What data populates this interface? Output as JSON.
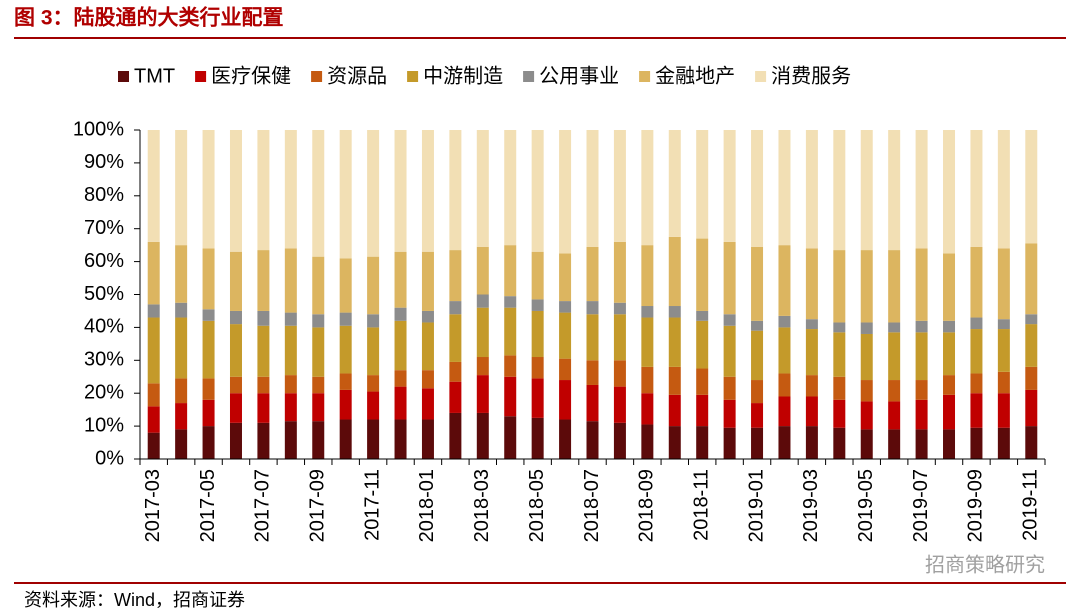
{
  "chart_data": {
    "type": "stacked_bar",
    "title": "图 3：陆股通的大类行业配置",
    "source": "资料来源：Wind，招商证券",
    "watermark": "招商策略研究",
    "categories": [
      "2017-03",
      null,
      "2017-05",
      null,
      "2017-07",
      null,
      "2017-09",
      null,
      "2017-11",
      null,
      "2018-01",
      null,
      "2018-03",
      null,
      "2018-05",
      null,
      "2018-07",
      null,
      "2018-09",
      null,
      "2018-11",
      null,
      "2019-01",
      null,
      "2019-03",
      null,
      "2019-05",
      null,
      "2019-07",
      null,
      "2019-09",
      null,
      "2019-11"
    ],
    "series": [
      {
        "name": "TMT",
        "color": "#5c0a0a",
        "values": [
          8,
          9,
          10,
          11,
          11,
          11.5,
          11.5,
          12,
          12,
          12,
          12,
          14,
          14,
          13,
          12.5,
          12,
          11.5,
          11,
          10.5,
          10,
          10,
          9.5,
          9.5,
          10,
          10,
          9.5,
          9,
          9,
          9,
          9,
          9.5,
          9.5,
          10
        ]
      },
      {
        "name": "医疗保健",
        "color": "#c00000",
        "values": [
          8,
          8,
          8,
          9,
          9,
          8.5,
          8.5,
          9,
          8.5,
          10,
          9.5,
          9.5,
          11.5,
          12,
          12,
          12,
          11,
          11,
          9.5,
          9.5,
          9.5,
          8.5,
          7.5,
          9,
          9,
          8.5,
          8.5,
          8.5,
          9,
          10.5,
          10.5,
          10.5,
          11
        ]
      },
      {
        "name": "资源品",
        "color": "#c55a11",
        "values": [
          7,
          7.5,
          6.5,
          5,
          5,
          5.5,
          5,
          5,
          5,
          5,
          5.5,
          6,
          5.5,
          6.5,
          6.5,
          6.5,
          7.5,
          8,
          8,
          8.5,
          8,
          7,
          7,
          7,
          6.5,
          7,
          6.5,
          6.5,
          6,
          6,
          6,
          6.5,
          7
        ]
      },
      {
        "name": "中游制造",
        "color": "#c49a2a",
        "values": [
          20,
          18.5,
          17.5,
          16,
          15.5,
          15,
          15,
          14.5,
          14.5,
          15,
          14.5,
          14.5,
          15,
          14.5,
          14,
          14,
          14,
          14,
          15,
          15,
          14.5,
          15.5,
          15,
          14,
          14,
          13.5,
          14,
          14.5,
          14.5,
          13,
          13.5,
          13,
          13
        ]
      },
      {
        "name": "公用事业",
        "color": "#8c8c8c",
        "values": [
          4,
          4.5,
          3.5,
          4,
          4.5,
          4,
          4,
          4,
          4,
          4,
          3.5,
          4,
          4,
          3.5,
          3.5,
          3.5,
          4,
          3.5,
          3.5,
          3.5,
          3,
          3.5,
          3,
          3.5,
          3,
          3,
          3.5,
          3,
          3.5,
          3.5,
          3.5,
          3,
          3
        ]
      },
      {
        "name": "金融地产",
        "color": "#dcb560",
        "values": [
          19,
          17.5,
          18.5,
          18,
          18.5,
          19.5,
          17.5,
          16.5,
          17.5,
          17,
          18,
          15.5,
          14.5,
          15.5,
          14.5,
          14.5,
          16.5,
          18.5,
          18.5,
          21,
          22,
          22,
          22.5,
          21.5,
          21.5,
          22,
          22,
          22,
          22,
          20.5,
          21.5,
          21.5,
          21.5
        ]
      },
      {
        "name": "消费服务",
        "color": "#f2dfb4",
        "values": [
          34,
          35,
          36,
          37,
          36.5,
          36,
          38.5,
          39,
          38.5,
          37,
          37,
          36.5,
          35.5,
          35,
          37,
          37.5,
          35.5,
          34,
          35,
          32.5,
          33,
          34,
          35.5,
          35,
          36,
          36.5,
          36.5,
          36.5,
          36,
          37.5,
          35.5,
          36,
          34.5
        ]
      }
    ],
    "ylim": [
      0,
      100
    ],
    "yticks": [
      {
        "value": 0,
        "label": "0%"
      },
      {
        "value": 10,
        "label": "10%"
      },
      {
        "value": 20,
        "label": "20%"
      },
      {
        "value": 30,
        "label": "30%"
      },
      {
        "value": 40,
        "label": "40%"
      },
      {
        "value": 50,
        "label": "50%"
      },
      {
        "value": 60,
        "label": "60%"
      },
      {
        "value": 70,
        "label": "70%"
      },
      {
        "value": 80,
        "label": "80%"
      },
      {
        "value": 90,
        "label": "90%"
      },
      {
        "value": 100,
        "label": "100%"
      }
    ],
    "legend": "top"
  }
}
